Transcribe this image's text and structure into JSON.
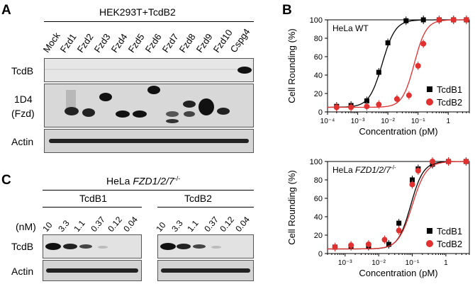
{
  "panels": {
    "a": "A",
    "b": "B",
    "c": "C"
  },
  "panel_a": {
    "cell_line": "HEK293T+TcdB2",
    "lanes": [
      "Mock",
      "Fzd1",
      "Fzd2",
      "Fzd3",
      "Fzd4",
      "Fzd5",
      "Fzd6",
      "Fzd7",
      "Fzd8",
      "Fzd9",
      "Fzd10",
      "Cspg4"
    ],
    "rows": [
      "TcdB",
      "1D4",
      "(Fzd)",
      "Actin"
    ]
  },
  "panel_c": {
    "cell_line_prefix": "HeLa ",
    "cell_line_gene": "FZD1/2/7",
    "cell_line_sup": "-/-",
    "groups": [
      "TcdB1",
      "TcdB2"
    ],
    "unit": "(nM)",
    "doses": [
      "10",
      "3.3",
      "1.1",
      "0.37",
      "0.12",
      "0.04"
    ],
    "rows": [
      "TcdB",
      "Actin"
    ]
  },
  "chart_data": [
    {
      "type": "scatter",
      "title": "HeLa WT",
      "xlabel": "Concentration (pM)",
      "ylabel": "Cell Rounding (%)",
      "x_scale": "log",
      "xlim": [
        0.0001,
        5
      ],
      "ylim": [
        0,
        100
      ],
      "x_ticks": [
        "10⁻⁴",
        "10⁻³",
        "10⁻²",
        "10⁻¹",
        "1"
      ],
      "y_ticks": [
        "0",
        "20",
        "40",
        "60",
        "80",
        "100"
      ],
      "legend_position": "right",
      "series": [
        {
          "name": "TcdB1",
          "marker": "square",
          "color": "#000000",
          "x": [
            0.0002,
            0.0006,
            0.002,
            0.005,
            0.01,
            0.04,
            0.15,
            0.5,
            1.5,
            4
          ],
          "y": [
            6,
            7,
            12,
            43,
            75,
            99,
            100,
            100,
            100,
            100
          ]
        },
        {
          "name": "TcdB2",
          "marker": "circle",
          "color": "#e0302f",
          "x": [
            0.0002,
            0.0006,
            0.002,
            0.005,
            0.02,
            0.05,
            0.1,
            0.15,
            0.5,
            1.5,
            4
          ],
          "y": [
            5,
            5,
            6,
            8,
            14,
            18,
            50,
            74,
            100,
            100,
            100
          ]
        }
      ]
    },
    {
      "type": "scatter",
      "title_prefix": "HeLa ",
      "title_gene": "FZD1/2/7",
      "title_sup": "-/-",
      "xlabel": "Concentration (pM)",
      "ylabel": "Cell Rounding (%)",
      "x_scale": "log",
      "xlim": [
        0.0003,
        5
      ],
      "ylim": [
        0,
        100
      ],
      "x_ticks": [
        "10⁻³",
        "10⁻²",
        "10⁻¹",
        "1"
      ],
      "y_ticks": [
        "0",
        "20",
        "40",
        "60",
        "80",
        "100"
      ],
      "legend_position": "right",
      "series": [
        {
          "name": "TcdB1",
          "marker": "square",
          "color": "#000000",
          "x": [
            0.0005,
            0.0015,
            0.005,
            0.02,
            0.04,
            0.1,
            0.15,
            0.4,
            1.2,
            4
          ],
          "y": [
            7,
            8,
            8,
            10,
            33,
            80,
            92,
            97,
            100,
            100
          ]
        },
        {
          "name": "TcdB2",
          "marker": "circle",
          "color": "#e0302f",
          "x": [
            0.0005,
            0.0015,
            0.005,
            0.015,
            0.04,
            0.1,
            0.15,
            0.4,
            1.2,
            4
          ],
          "y": [
            7,
            9,
            10,
            15,
            25,
            75,
            90,
            100,
            100,
            100
          ]
        }
      ]
    }
  ]
}
